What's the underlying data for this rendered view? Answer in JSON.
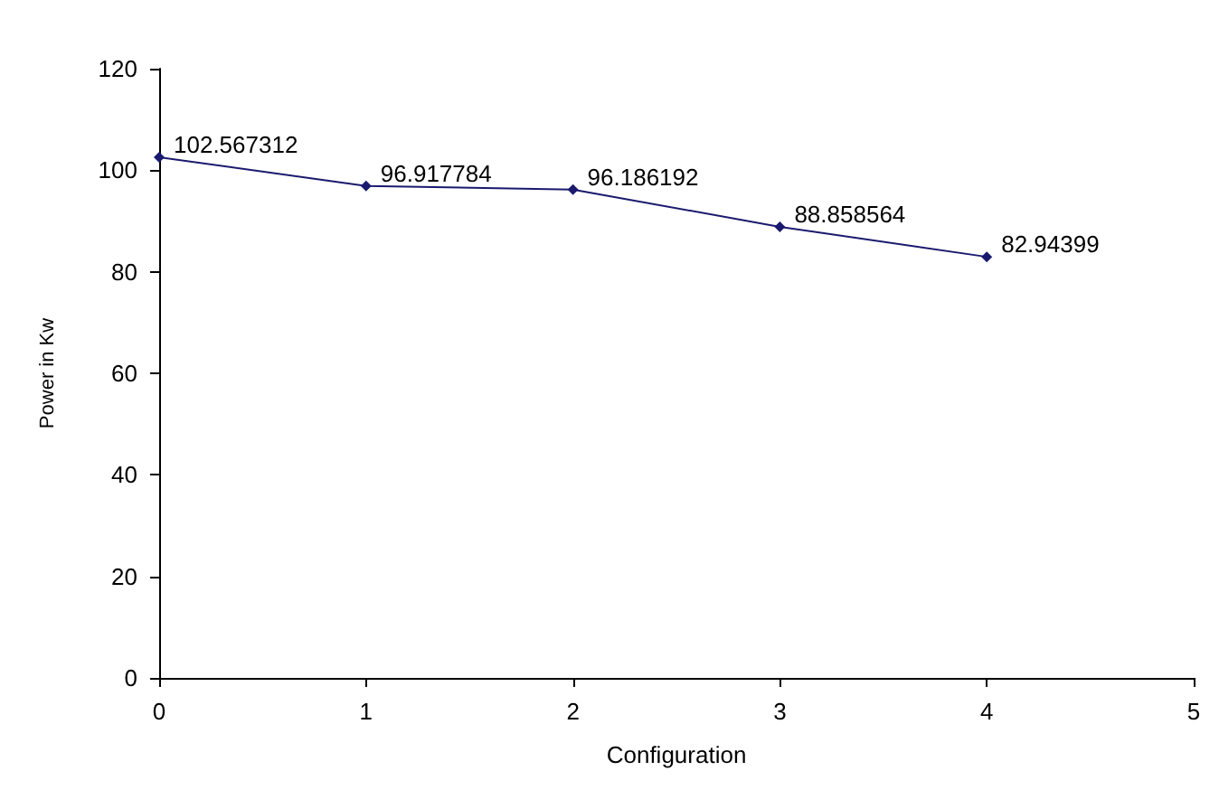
{
  "chart_data": {
    "type": "line",
    "xlabel": "Configuration",
    "ylabel": "Power in Kw",
    "x": [
      0,
      1,
      2,
      3,
      4
    ],
    "series": [
      {
        "color": "#1a1a6e",
        "values": [
          102.567312,
          96.917784,
          96.186192,
          88.858564,
          82.94399
        ]
      }
    ],
    "xlim": [
      0,
      5
    ],
    "xticks": [
      0,
      1,
      2,
      3,
      4,
      5
    ],
    "ylim": [
      0,
      120
    ],
    "yticks": [
      0,
      20,
      40,
      60,
      80,
      100,
      120
    ],
    "marker": "diamond",
    "line_style": "solid",
    "data_labels": true
  }
}
